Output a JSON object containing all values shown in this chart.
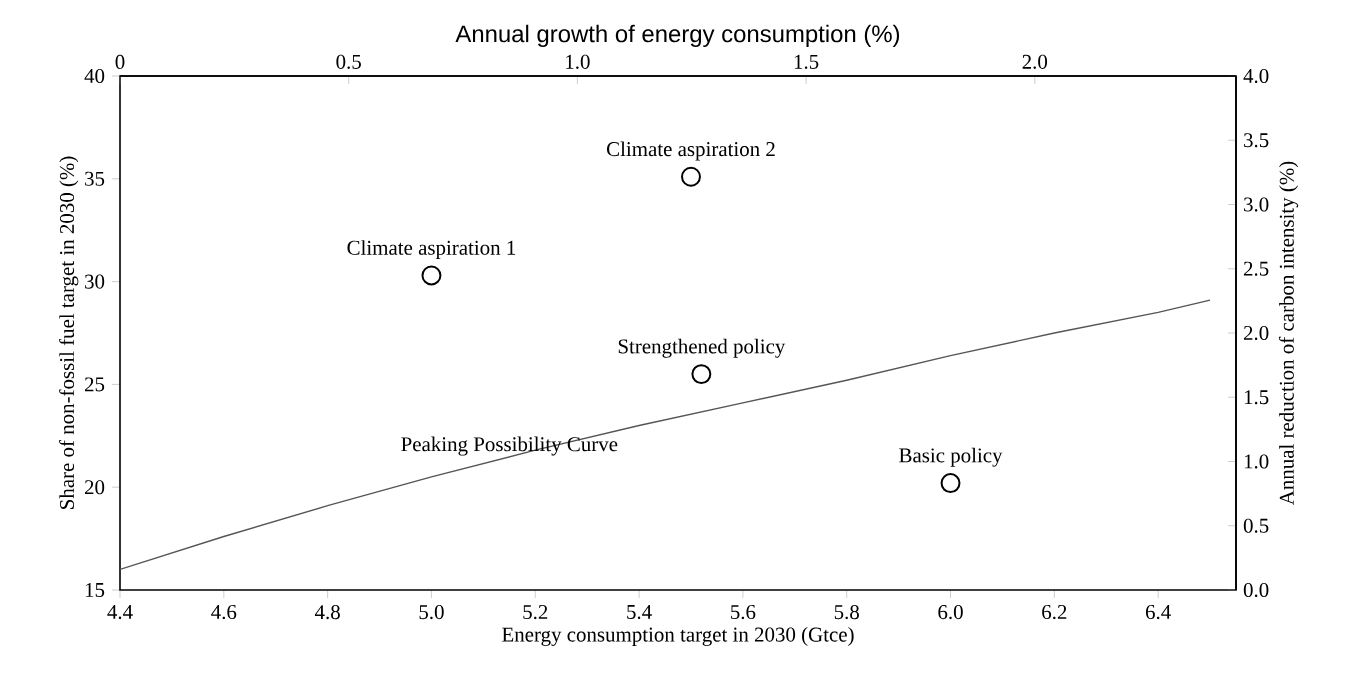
{
  "chart_data": {
    "type": "scatter",
    "xlabel": "Energy consumption target in 2030 (Gtce)",
    "ylabel": "Share of non-fossil fuel target in 2030 (%)",
    "x2label": "Annual growth of energy consumption (%)",
    "y2label": "Annual reduction of carbon intensity (%)",
    "xlim": [
      4.4,
      6.55
    ],
    "xticks": [
      4.4,
      4.6,
      4.8,
      {
        "value": 5.0,
        "label": "5.0"
      },
      5.2,
      5.4,
      5.6,
      5.8,
      {
        "value": 6.0,
        "label": "6.0"
      },
      6.2,
      6.4
    ],
    "ylim": [
      15,
      40
    ],
    "yticks": [
      15,
      20,
      25,
      30,
      35,
      40
    ],
    "x2lim": [
      0,
      2.44
    ],
    "x2ticks": [
      0,
      0.5,
      {
        "value": 1.0,
        "label": "1.0"
      },
      1.5,
      {
        "value": 2.0,
        "label": "2.0"
      }
    ],
    "y2lim": [
      0,
      4
    ],
    "y2ticks": [
      {
        "value": 0,
        "label": "0.0"
      },
      0.5,
      {
        "value": 1,
        "label": "1.0"
      },
      1.5,
      {
        "value": 2,
        "label": "2.0"
      },
      2.5,
      {
        "value": 3,
        "label": "3.0"
      },
      3.5,
      {
        "value": 4,
        "label": "4.0"
      }
    ],
    "grid": false,
    "series": [
      {
        "color": "#000000",
        "marker": "circle",
        "x": [
          5.0,
          5.5,
          5.52,
          6.0
        ],
        "values": [
          30.3,
          35.1,
          25.5,
          20.2
        ]
      },
      {
        "type": "line",
        "color": "#555555",
        "marker": "none",
        "line_style": "solid",
        "x": [
          4.4,
          4.6,
          4.8,
          5.0,
          5.2,
          5.4,
          5.6,
          5.8,
          6.0,
          6.2,
          6.4,
          6.5
        ],
        "values": [
          16.0,
          17.6,
          19.1,
          20.5,
          21.8,
          23.0,
          24.1,
          25.2,
          26.4,
          27.5,
          28.5,
          29.1
        ]
      }
    ],
    "annotations": [
      {
        "text": "Climate aspiration 1",
        "x": 5.0,
        "y": 30.3
      },
      {
        "text": "Climate aspiration 2",
        "x": 5.5,
        "y": 35.1
      },
      {
        "text": "Strengthened policy",
        "x": 5.52,
        "y": 25.5
      },
      {
        "text": "Basic policy",
        "x": 6.0,
        "y": 20.2
      },
      {
        "text": "Peaking Possibility Curve",
        "x": 5.15,
        "y": 22.0
      }
    ]
  }
}
